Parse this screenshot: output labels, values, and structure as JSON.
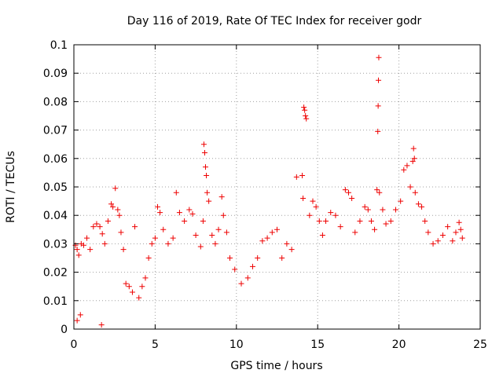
{
  "chart_data": {
    "type": "scatter",
    "title": "Day 116 of 2019, Rate Of TEC Index for receiver godr",
    "xlabel": "GPS time / hours",
    "ylabel": "ROTI / TECUs",
    "xlim": [
      0,
      25
    ],
    "ylim": [
      0,
      0.1
    ],
    "xticks": [
      "0",
      "5",
      "10",
      "15",
      "20",
      "25"
    ],
    "yticks": [
      "0",
      "0.01",
      "0.02",
      "0.03",
      "0.04",
      "0.05",
      "0.06",
      "0.07",
      "0.08",
      "0.09",
      "0.1"
    ],
    "grid": true,
    "marker": "+",
    "color": "#ee0000",
    "series": [
      {
        "points": [
          [
            0.1,
            0.0295
          ],
          [
            0.2,
            0.028
          ],
          [
            0.3,
            0.026
          ],
          [
            0.45,
            0.03
          ],
          [
            0.6,
            0.0295
          ],
          [
            0.8,
            0.032
          ],
          [
            1.0,
            0.028
          ],
          [
            1.2,
            0.036
          ],
          [
            1.4,
            0.037
          ],
          [
            1.6,
            0.036
          ],
          [
            1.75,
            0.0335
          ],
          [
            1.9,
            0.03
          ],
          [
            2.1,
            0.038
          ],
          [
            2.3,
            0.044
          ],
          [
            2.4,
            0.043
          ],
          [
            2.55,
            0.0495
          ],
          [
            2.7,
            0.042
          ],
          [
            2.8,
            0.04
          ],
          [
            2.9,
            0.034
          ],
          [
            3.05,
            0.028
          ],
          [
            3.2,
            0.016
          ],
          [
            3.4,
            0.015
          ],
          [
            3.6,
            0.013
          ],
          [
            1.7,
            0.0015
          ],
          [
            0.2,
            0.003
          ],
          [
            0.4,
            0.005
          ],
          [
            3.75,
            0.036
          ],
          [
            4.0,
            0.011
          ],
          [
            4.2,
            0.015
          ],
          [
            4.4,
            0.018
          ],
          [
            4.6,
            0.025
          ],
          [
            4.8,
            0.03
          ],
          [
            5.0,
            0.032
          ],
          [
            5.15,
            0.043
          ],
          [
            5.3,
            0.041
          ],
          [
            5.5,
            0.035
          ],
          [
            5.8,
            0.03
          ],
          [
            6.1,
            0.032
          ],
          [
            6.3,
            0.048
          ],
          [
            6.5,
            0.041
          ],
          [
            6.8,
            0.038
          ],
          [
            7.1,
            0.042
          ],
          [
            7.3,
            0.0405
          ],
          [
            7.5,
            0.033
          ],
          [
            7.8,
            0.029
          ],
          [
            7.95,
            0.038
          ],
          [
            8.0,
            0.065
          ],
          [
            8.05,
            0.062
          ],
          [
            8.1,
            0.057
          ],
          [
            8.15,
            0.054
          ],
          [
            8.2,
            0.048
          ],
          [
            8.3,
            0.045
          ],
          [
            8.5,
            0.033
          ],
          [
            8.7,
            0.03
          ],
          [
            8.9,
            0.035
          ],
          [
            9.1,
            0.0465
          ],
          [
            9.2,
            0.04
          ],
          [
            9.4,
            0.034
          ],
          [
            9.6,
            0.025
          ],
          [
            9.9,
            0.021
          ],
          [
            10.3,
            0.016
          ],
          [
            10.7,
            0.018
          ],
          [
            11.0,
            0.022
          ],
          [
            11.3,
            0.025
          ],
          [
            11.6,
            0.031
          ],
          [
            11.9,
            0.032
          ],
          [
            12.2,
            0.034
          ],
          [
            12.5,
            0.035
          ],
          [
            12.8,
            0.025
          ],
          [
            13.1,
            0.03
          ],
          [
            13.4,
            0.028
          ],
          [
            13.7,
            0.0535
          ],
          [
            14.05,
            0.054
          ],
          [
            14.1,
            0.046
          ],
          [
            14.15,
            0.078
          ],
          [
            14.2,
            0.077
          ],
          [
            14.25,
            0.075
          ],
          [
            14.3,
            0.074
          ],
          [
            14.5,
            0.04
          ],
          [
            14.7,
            0.045
          ],
          [
            14.9,
            0.043
          ],
          [
            15.1,
            0.038
          ],
          [
            15.3,
            0.033
          ],
          [
            15.5,
            0.038
          ],
          [
            15.8,
            0.041
          ],
          [
            16.1,
            0.04
          ],
          [
            16.4,
            0.036
          ],
          [
            16.7,
            0.049
          ],
          [
            16.9,
            0.048
          ],
          [
            17.1,
            0.046
          ],
          [
            17.3,
            0.034
          ],
          [
            17.6,
            0.038
          ],
          [
            17.9,
            0.043
          ],
          [
            18.1,
            0.042
          ],
          [
            18.3,
            0.038
          ],
          [
            18.5,
            0.035
          ],
          [
            18.65,
            0.049
          ],
          [
            18.7,
            0.0695
          ],
          [
            18.72,
            0.0785
          ],
          [
            18.74,
            0.0875
          ],
          [
            18.76,
            0.0955
          ],
          [
            18.8,
            0.048
          ],
          [
            19.0,
            0.042
          ],
          [
            19.2,
            0.037
          ],
          [
            19.5,
            0.038
          ],
          [
            19.8,
            0.042
          ],
          [
            20.1,
            0.045
          ],
          [
            20.3,
            0.056
          ],
          [
            20.5,
            0.0575
          ],
          [
            20.7,
            0.05
          ],
          [
            20.85,
            0.059
          ],
          [
            20.9,
            0.0635
          ],
          [
            20.95,
            0.06
          ],
          [
            21.0,
            0.048
          ],
          [
            21.2,
            0.044
          ],
          [
            21.4,
            0.043
          ],
          [
            21.6,
            0.038
          ],
          [
            21.8,
            0.034
          ],
          [
            22.1,
            0.03
          ],
          [
            22.4,
            0.031
          ],
          [
            22.7,
            0.033
          ],
          [
            23.0,
            0.036
          ],
          [
            23.3,
            0.031
          ],
          [
            23.5,
            0.034
          ],
          [
            23.7,
            0.0375
          ],
          [
            23.8,
            0.035
          ],
          [
            23.9,
            0.032
          ]
        ]
      }
    ]
  }
}
